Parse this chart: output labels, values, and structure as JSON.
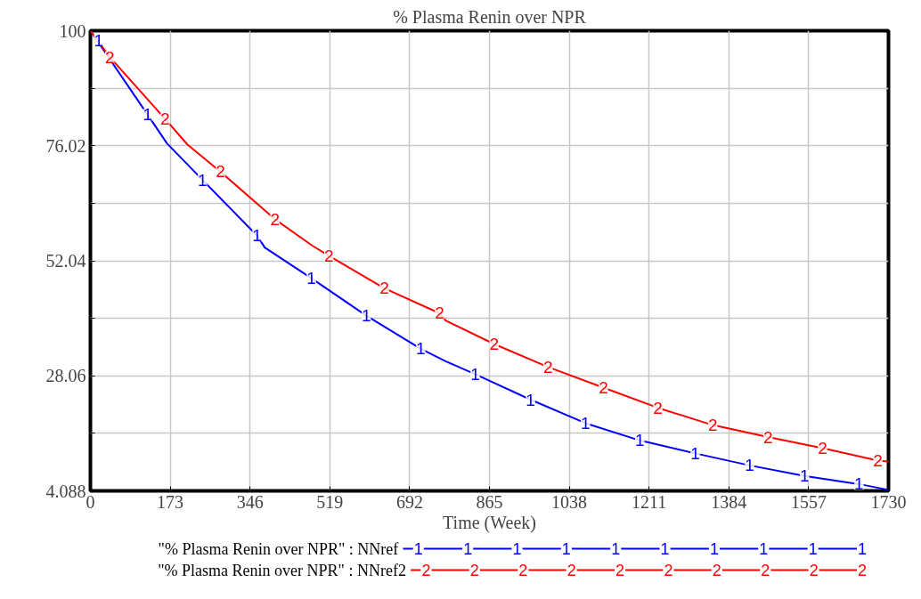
{
  "chart_data": {
    "type": "line",
    "title": "% Plasma Renin over NPR",
    "xlabel": "Time (Week)",
    "xlim": [
      0,
      1730
    ],
    "xticks": [
      0,
      173,
      346,
      519,
      692,
      865,
      1038,
      1211,
      1384,
      1557,
      1730
    ],
    "ylim": [
      4.088,
      100
    ],
    "yticks": [
      4.088,
      {
        "value": 16.076,
        "label": null
      },
      28.06,
      {
        "value": 40.05,
        "label": null
      },
      52.04,
      {
        "value": 64.03,
        "label": null
      },
      76.02,
      {
        "value": 88.01,
        "label": null
      },
      100
    ],
    "grid": true,
    "legend": "bottom",
    "line_style": "solid",
    "series": [
      {
        "name": "\"% Plasma Renin over NPR\" : NNref",
        "color": "#0000ff",
        "x": [
          0,
          124,
          166,
          243,
          361,
          378,
          479,
          598,
          716,
          770,
          834,
          954,
          1073,
          1191,
          1311,
          1429,
          1548,
          1666,
          1730
        ],
        "values": [
          100,
          82.5,
          76.5,
          68.9,
          57.3,
          54.8,
          48.4,
          40.6,
          33.7,
          31.1,
          28.4,
          23.1,
          18.2,
          14.6,
          11.9,
          9.4,
          7.2,
          5.5,
          4.3
        ]
      },
      {
        "name": "\"% Plasma Renin over NPR\" : NNref2",
        "color": "#ff0000",
        "x": [
          0,
          42,
          162,
          210,
          282,
          400,
          481,
          517,
          637,
          757,
          770,
          875,
          992,
          1112,
          1230,
          1349,
          1469,
          1587,
          1707,
          1730
        ],
        "values": [
          100,
          94.5,
          81.6,
          76.3,
          70.6,
          60.7,
          55.2,
          53.1,
          46.3,
          41.1,
          39.6,
          34.7,
          29.9,
          25.6,
          21.4,
          17.8,
          15.3,
          13.0,
          10.4,
          10.2
        ]
      }
    ],
    "annotations": [
      {
        "text": "1",
        "x": 0,
        "y": 100
      },
      {
        "text": "1",
        "x": 124,
        "y": 82.5
      },
      {
        "text": "1",
        "x": 243,
        "y": 68.9
      },
      {
        "text": "1",
        "x": 361,
        "y": 57.3
      },
      {
        "text": "1",
        "x": 479,
        "y": 48.4
      },
      {
        "text": "1",
        "x": 598,
        "y": 40.6
      },
      {
        "text": "1",
        "x": 716,
        "y": 33.7
      },
      {
        "text": "1",
        "x": 834,
        "y": 28.4
      },
      {
        "text": "1",
        "x": 954,
        "y": 23.1
      },
      {
        "text": "1",
        "x": 1073,
        "y": 18.2
      },
      {
        "text": "1",
        "x": 1191,
        "y": 14.6
      },
      {
        "text": "1",
        "x": 1311,
        "y": 11.9
      },
      {
        "text": "1",
        "x": 1429,
        "y": 9.4
      },
      {
        "text": "1",
        "x": 1548,
        "y": 7.2
      },
      {
        "text": "1",
        "x": 1666,
        "y": 5.5
      },
      {
        "text": "2",
        "x": 42,
        "y": 94.5
      },
      {
        "text": "2",
        "x": 162,
        "y": 81.6
      },
      {
        "text": "2",
        "x": 282,
        "y": 70.6
      },
      {
        "text": "2",
        "x": 400,
        "y": 60.7
      },
      {
        "text": "2",
        "x": 517,
        "y": 53.1
      },
      {
        "text": "2",
        "x": 637,
        "y": 46.3
      },
      {
        "text": "2",
        "x": 757,
        "y": 41.1
      },
      {
        "text": "2",
        "x": 875,
        "y": 34.7
      },
      {
        "text": "2",
        "x": 992,
        "y": 29.9
      },
      {
        "text": "2",
        "x": 1112,
        "y": 25.6
      },
      {
        "text": "2",
        "x": 1230,
        "y": 21.4
      },
      {
        "text": "2",
        "x": 1349,
        "y": 17.8
      },
      {
        "text": "2",
        "x": 1469,
        "y": 15.3
      },
      {
        "text": "2",
        "x": 1587,
        "y": 13.0
      },
      {
        "text": "2",
        "x": 1707,
        "y": 10.4
      }
    ]
  }
}
